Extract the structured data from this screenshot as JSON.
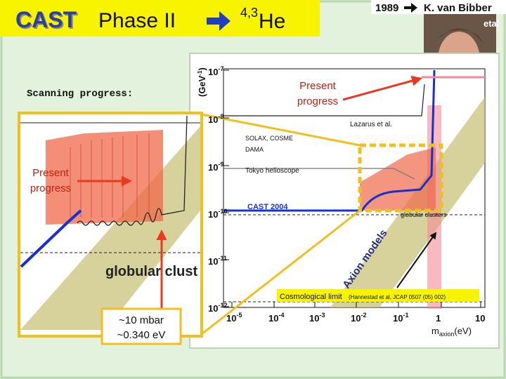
{
  "header": {
    "title_bold": "CAST",
    "title_rest": "Phase II",
    "superscript": "4,3",
    "element": "He"
  },
  "credit": {
    "year": "1989",
    "name": "K. van Bibber",
    "etal": "etal"
  },
  "labels": {
    "scanning": "Scanning progress:",
    "present_right": [
      "Present",
      "progress"
    ],
    "present_left": [
      "Present",
      "progress"
    ],
    "pressure": "~10 mbar",
    "mass": "~0.340 eV"
  },
  "plot": {
    "y_label": {
      "base": "(GeV",
      "exp": "-1",
      "close": ")"
    },
    "yticks": [
      {
        "base": "10",
        "exp": "-7"
      },
      {
        "base": "10",
        "exp": "-8"
      },
      {
        "base": "10",
        "exp": "-9"
      },
      {
        "base": "10",
        "exp": "-10"
      },
      {
        "base": "10",
        "exp": "-11"
      },
      {
        "base": "10",
        "exp": "-12"
      }
    ],
    "xticks": [
      {
        "base": "10",
        "exp": "-5"
      },
      {
        "base": "10",
        "exp": "-4"
      },
      {
        "base": "10",
        "exp": "-3"
      },
      {
        "base": "10",
        "exp": "-2"
      },
      {
        "base": "10",
        "exp": "-1"
      },
      {
        "base": "1",
        "exp": ""
      },
      {
        "base": "10",
        "exp": ""
      }
    ],
    "x_label": {
      "base": "m",
      "sub": "axion",
      "unit": "(eV)"
    },
    "annotations": {
      "lazarus": "Lazarus et al.",
      "solax": "SOLAX, COSME",
      "dama": "DAMA",
      "tokyo": "Tokyo helioscope",
      "cast2004": "CAST 2004",
      "globular": "globular clusters",
      "axion_models": "Axion models",
      "cosmo": "Cosmological limit",
      "cosmo_ref": "(Hannestad et al, JCAP 0507 (05) 002)"
    },
    "zoom_label": "globular clust"
  }
}
